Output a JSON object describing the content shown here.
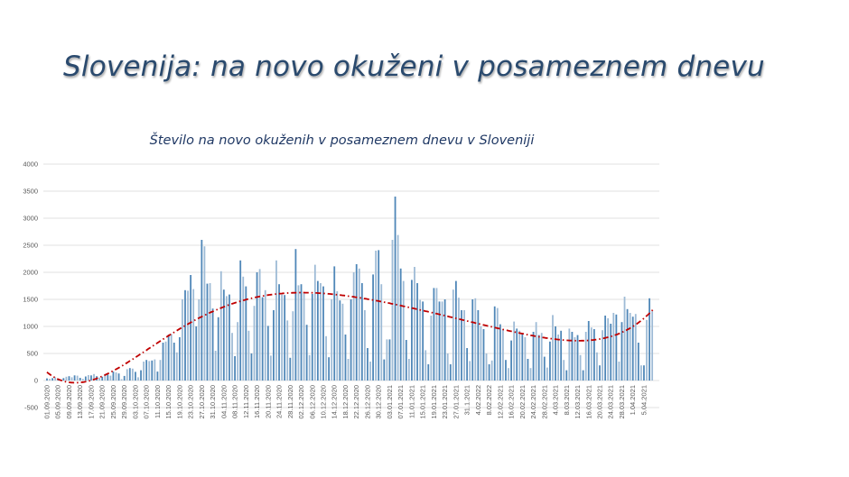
{
  "slide": {
    "title": "Slovenija: na novo okuženi v posameznem dnevu"
  },
  "chart_data": {
    "type": "bar",
    "title": "Število na novo okuženih v posameznem dnevu v Sloveniji",
    "xlabel": "",
    "ylabel": "",
    "ylim": [
      -500,
      4000
    ],
    "yticks": [
      -500,
      0,
      500,
      1000,
      1500,
      2000,
      2500,
      3000,
      3500,
      4000
    ],
    "grid": true,
    "legend": "none",
    "start_date": "01.09.2020",
    "end_date": "08.04.2021",
    "xtick_labels": [
      "01.09.2020",
      "05.09.2020",
      "09.09.2020",
      "13.09.2020",
      "17.09.2020",
      "21.09.2020",
      "25.09.2020",
      "29.09.2020",
      "03.10.2020",
      "07.10.2020",
      "11.10.2020",
      "15.10.2020",
      "19.10.2020",
      "23.10.2020",
      "27.10.2020",
      "31.10.2020",
      "04.11.2020",
      "08.11.2020",
      "12.11.2020",
      "16.11.2020",
      "20.11.2020",
      "24.11.2020",
      "28.11.2020",
      "02.12.2020",
      "06.12.2020",
      "10.12.2020",
      "14.12.2020",
      "18.12.2020",
      "22.12.2020",
      "26.12.2020",
      "30.12.2020",
      "03.01.2021",
      "07.01.2021",
      "11.01.2021",
      "15.01.2021",
      "19.01.2021",
      "23.01.2021",
      "27.01.2021",
      "31.1.2021",
      "4.02.2022",
      "8.02.2022",
      "12.02.2021",
      "16.02.2021",
      "20.02.2021",
      "24.02.2021",
      "28.02.2021",
      "4.03.2021",
      "8.03.2021",
      "12.03.2021",
      "16.03.2021",
      "20.03.2021",
      "24.03.2021",
      "28.03.2021",
      "1.04.2021",
      "5.04.2021"
    ],
    "xtick_every_days": 4,
    "values": [
      40,
      30,
      45,
      60,
      25,
      10,
      45,
      70,
      80,
      60,
      95,
      90,
      50,
      30,
      75,
      100,
      95,
      120,
      80,
      55,
      70,
      120,
      110,
      90,
      165,
      150,
      130,
      25,
      85,
      210,
      230,
      220,
      160,
      60,
      190,
      350,
      380,
      360,
      370,
      390,
      165,
      380,
      700,
      720,
      850,
      860,
      700,
      520,
      800,
      1500,
      1670,
      1660,
      1950,
      1690,
      1000,
      1500,
      2600,
      2480,
      1790,
      1800,
      1330,
      550,
      1170,
      2020,
      1680,
      1560,
      1590,
      880,
      450,
      1080,
      2220,
      1920,
      1740,
      920,
      500,
      1380,
      2000,
      2060,
      1540,
      1670,
      1010,
      460,
      1300,
      2220,
      1780,
      1590,
      1580,
      1110,
      420,
      1280,
      2430,
      1760,
      1780,
      1620,
      1030,
      470,
      1600,
      2140,
      1840,
      1800,
      1740,
      820,
      430,
      1500,
      2110,
      1650,
      1480,
      1420,
      850,
      400,
      1500,
      2000,
      2150,
      2070,
      1800,
      1300,
      600,
      350,
      1960,
      2400,
      2410,
      1780,
      390,
      760,
      760,
      2600,
      3400,
      2690,
      2070,
      1840,
      750,
      400,
      1860,
      2100,
      1800,
      1490,
      1460,
      560,
      300,
      1200,
      1710,
      1710,
      1460,
      1460,
      1500,
      500,
      300,
      1680,
      1840,
      1530,
      1300,
      1300,
      600,
      360,
      1500,
      1520,
      1300,
      1000,
      950,
      500,
      300,
      370,
      1370,
      1340,
      1040,
      950,
      380,
      230,
      740,
      1090,
      960,
      920,
      870,
      800,
      400,
      230,
      900,
      1080,
      840,
      880,
      440,
      240,
      720,
      1210,
      1000,
      850,
      920,
      380,
      190,
      960,
      900,
      800,
      840,
      470,
      190,
      900,
      1100,
      980,
      950,
      520,
      280,
      930,
      1200,
      1150,
      1050,
      1250,
      1220,
      350,
      1080,
      1550,
      1320,
      1250,
      1180,
      1230,
      700,
      280,
      280,
      1120,
      1520,
      1280
    ],
    "trendline": {
      "type": "polynomial",
      "order": 6,
      "style": "dash-dot",
      "color": "#c00000"
    },
    "colors": {
      "bar_dark": "#4f87b8",
      "bar_light": "#9ebbd6",
      "grid": "#d9d9d9"
    }
  }
}
